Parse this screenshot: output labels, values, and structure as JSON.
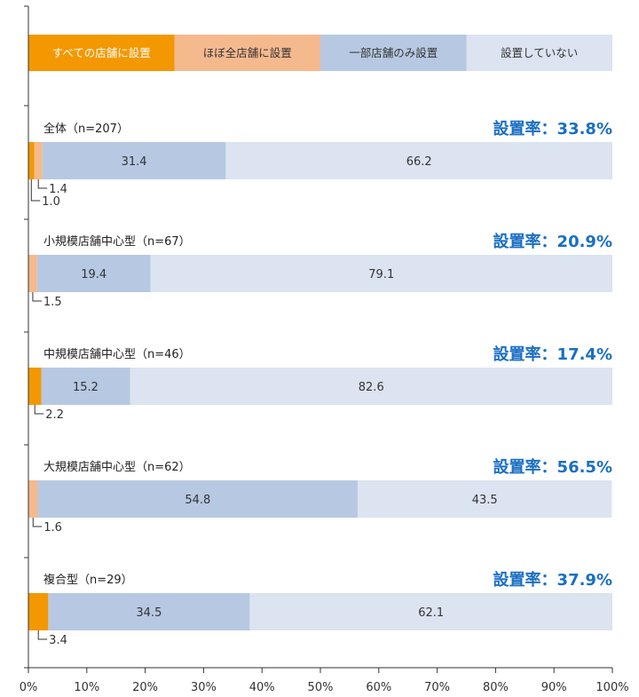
{
  "chart_data": {
    "type": "bar",
    "orientation": "horizontal",
    "stacked": true,
    "legend": {
      "placement": "top",
      "entries": [
        {
          "name": "すべての店舗に設置",
          "color": "#f39800",
          "text_color": "#ffffff"
        },
        {
          "name": "ほぼ全店舗に設置",
          "color": "#f5b98e",
          "text_color": "#333333"
        },
        {
          "name": "一部店舗のみ設置",
          "color": "#b7c9e2",
          "text_color": "#333333"
        },
        {
          "name": "設置していない",
          "color": "#dbe4f0",
          "text_color": "#333333"
        }
      ]
    },
    "categories": [
      "全体（n=207）",
      "小規模店舗中心型（n=67）",
      "中規模店舗中心型（n=46）",
      "大規模店舗中心型（n=62）",
      "複合型（n=29）"
    ],
    "series": [
      {
        "name": "すべての店舗に設置",
        "values": [
          1.0,
          0,
          2.2,
          0,
          3.4
        ]
      },
      {
        "name": "ほぼ全店舗に設置",
        "values": [
          1.4,
          1.5,
          0,
          1.6,
          0
        ]
      },
      {
        "name": "一部店舗のみ設置",
        "values": [
          31.4,
          19.4,
          15.2,
          54.8,
          34.5
        ]
      },
      {
        "name": "設置していない",
        "values": [
          66.2,
          79.1,
          82.6,
          43.5,
          62.1
        ]
      }
    ],
    "rates": [
      "設置率：33.8%",
      "設置率：20.9%",
      "設置率：17.4%",
      "設置率：56.5%",
      "設置率：37.9%"
    ],
    "callouts": [
      [
        {
          "series": 1,
          "label": "1.4"
        },
        {
          "series": 0,
          "label": "1.0"
        }
      ],
      [
        {
          "series": 1,
          "label": "1.5"
        }
      ],
      [
        {
          "series": 0,
          "label": "2.2"
        }
      ],
      [
        {
          "series": 1,
          "label": "1.6"
        }
      ],
      [
        {
          "series": 0,
          "label": "3.4"
        }
      ]
    ],
    "inline_labels": [
      [
        "",
        "",
        "31.4",
        "66.2"
      ],
      [
        "",
        "",
        "19.4",
        "79.1"
      ],
      [
        "",
        "",
        "15.2",
        "82.6"
      ],
      [
        "",
        "",
        "54.8",
        "43.5"
      ],
      [
        "",
        "",
        "34.5",
        "62.1"
      ]
    ],
    "x_ticks": [
      "0%",
      "10%",
      "20%",
      "30%",
      "40%",
      "50%",
      "60%",
      "70%",
      "80%",
      "90%",
      "100%"
    ],
    "xlim": [
      0,
      100
    ],
    "grid": false
  }
}
